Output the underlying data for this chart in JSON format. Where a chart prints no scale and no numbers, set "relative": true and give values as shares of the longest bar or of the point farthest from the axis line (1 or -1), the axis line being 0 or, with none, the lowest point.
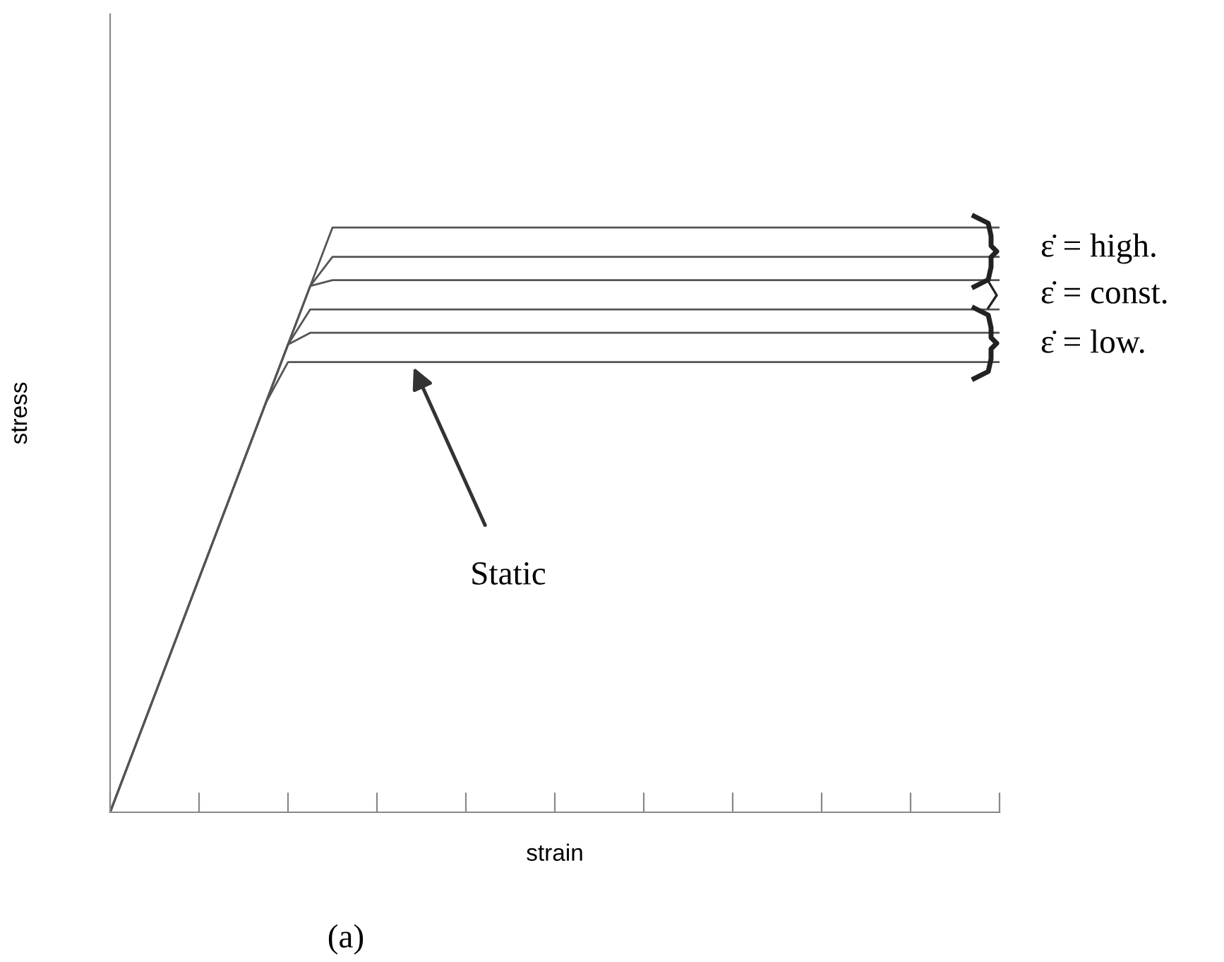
{
  "chart_data": {
    "type": "line",
    "relative": true,
    "xlabel": "strain",
    "ylabel": "stress",
    "categories": [
      null,
      null,
      null,
      null,
      null,
      null,
      null,
      null,
      null,
      null,
      null,
      null,
      null,
      null,
      null,
      null,
      null,
      null,
      null,
      null,
      null,
      null,
      null,
      null,
      null,
      null,
      null,
      null,
      null,
      null,
      null,
      null,
      null,
      null,
      null,
      null,
      null,
      null,
      null,
      null,
      null
    ],
    "series": [
      {
        "color": "#555555",
        "values": [
          0,
          0.1,
          0.2,
          0.3,
          0.4,
          0.5,
          0.6,
          0.7,
          0.8,
          0.9,
          1.0,
          1.0,
          1.0,
          1.0,
          1.0,
          1.0,
          1.0,
          1.0,
          1.0,
          1.0,
          1.0,
          1.0,
          1.0,
          1.0,
          1.0,
          1.0,
          1.0,
          1.0,
          1.0,
          1.0,
          1.0,
          1.0,
          1.0,
          1.0,
          1.0,
          1.0,
          1.0,
          1.0,
          1.0,
          1.0,
          1.0
        ]
      },
      {
        "color": "#555555",
        "values": [
          0,
          0.1,
          0.2,
          0.3,
          0.4,
          0.5,
          0.6,
          0.7,
          0.8,
          0.9,
          0.95,
          0.95,
          0.95,
          0.95,
          0.95,
          0.95,
          0.95,
          0.95,
          0.95,
          0.95,
          0.95,
          0.95,
          0.95,
          0.95,
          0.95,
          0.95,
          0.95,
          0.95,
          0.95,
          0.95,
          0.95,
          0.95,
          0.95,
          0.95,
          0.95,
          0.95,
          0.95,
          0.95,
          0.95,
          0.95,
          0.95
        ]
      },
      {
        "color": "#555555",
        "values": [
          0,
          0.1,
          0.2,
          0.3,
          0.4,
          0.5,
          0.6,
          0.7,
          0.8,
          0.9,
          0.91,
          0.91,
          0.91,
          0.91,
          0.91,
          0.91,
          0.91,
          0.91,
          0.91,
          0.91,
          0.91,
          0.91,
          0.91,
          0.91,
          0.91,
          0.91,
          0.91,
          0.91,
          0.91,
          0.91,
          0.91,
          0.91,
          0.91,
          0.91,
          0.91,
          0.91,
          0.91,
          0.91,
          0.91,
          0.91,
          0.91
        ]
      },
      {
        "color": "#555555",
        "values": [
          0,
          0.1,
          0.2,
          0.3,
          0.4,
          0.5,
          0.6,
          0.7,
          0.8,
          0.86,
          0.86,
          0.86,
          0.86,
          0.86,
          0.86,
          0.86,
          0.86,
          0.86,
          0.86,
          0.86,
          0.86,
          0.86,
          0.86,
          0.86,
          0.86,
          0.86,
          0.86,
          0.86,
          0.86,
          0.86,
          0.86,
          0.86,
          0.86,
          0.86,
          0.86,
          0.86,
          0.86,
          0.86,
          0.86,
          0.86,
          0.86
        ]
      },
      {
        "color": "#555555",
        "values": [
          0,
          0.1,
          0.2,
          0.3,
          0.4,
          0.5,
          0.6,
          0.7,
          0.8,
          0.82,
          0.82,
          0.82,
          0.82,
          0.82,
          0.82,
          0.82,
          0.82,
          0.82,
          0.82,
          0.82,
          0.82,
          0.82,
          0.82,
          0.82,
          0.82,
          0.82,
          0.82,
          0.82,
          0.82,
          0.82,
          0.82,
          0.82,
          0.82,
          0.82,
          0.82,
          0.82,
          0.82,
          0.82,
          0.82,
          0.82,
          0.82
        ]
      },
      {
        "color": "#555555",
        "values": [
          0,
          0.1,
          0.2,
          0.3,
          0.4,
          0.5,
          0.6,
          0.7,
          0.77,
          0.77,
          0.77,
          0.77,
          0.77,
          0.77,
          0.77,
          0.77,
          0.77,
          0.77,
          0.77,
          0.77,
          0.77,
          0.77,
          0.77,
          0.77,
          0.77,
          0.77,
          0.77,
          0.77,
          0.77,
          0.77,
          0.77,
          0.77,
          0.77,
          0.77,
          0.77,
          0.77,
          0.77,
          0.77,
          0.77,
          0.77,
          0.77
        ]
      }
    ],
    "annotations": [
      "Static",
      "ε̇ = high.",
      "ε̇ = const.",
      "ε̇ = low.",
      "(a)"
    ],
    "grid": false,
    "marker": "none",
    "line_style": "solid"
  }
}
